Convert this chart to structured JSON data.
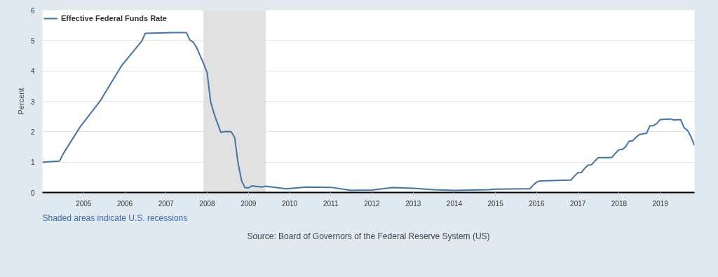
{
  "chart_data": {
    "type": "line",
    "ylabel": "Percent",
    "x": [
      "2004-01",
      "2004-06",
      "2004-07",
      "2004-12",
      "2005-06",
      "2005-12",
      "2006-06",
      "2006-07",
      "2007-03",
      "2007-07",
      "2007-08",
      "2007-09",
      "2007-10",
      "2007-11",
      "2007-12",
      "2008-01",
      "2008-02",
      "2008-03",
      "2008-04",
      "2008-05",
      "2008-06",
      "2008-07",
      "2008-08",
      "2008-09",
      "2008-10",
      "2008-11",
      "2008-12",
      "2009-01",
      "2009-02",
      "2009-05",
      "2009-06",
      "2009-12",
      "2010-06",
      "2011-01",
      "2011-07",
      "2012-01",
      "2012-07",
      "2013-01",
      "2013-07",
      "2014-01",
      "2014-11",
      "2015-01",
      "2015-10",
      "2015-11",
      "2015-12",
      "2016-01",
      "2016-02",
      "2016-11",
      "2016-12",
      "2017-01",
      "2017-02",
      "2017-03",
      "2017-04",
      "2017-05",
      "2017-06",
      "2017-07",
      "2017-10",
      "2017-11",
      "2017-12",
      "2018-01",
      "2018-02",
      "2018-03",
      "2018-04",
      "2018-05",
      "2018-06",
      "2018-07",
      "2018-09",
      "2018-10",
      "2018-11",
      "2018-12",
      "2019-01",
      "2019-04",
      "2019-05",
      "2019-07",
      "2019-08",
      "2019-09",
      "2019-10",
      "2019-11"
    ],
    "series": [
      {
        "name": "Effective Federal Funds Rate",
        "color": "#4572a7",
        "values": [
          1.0,
          1.03,
          1.26,
          2.16,
          3.04,
          4.16,
          4.99,
          5.24,
          5.26,
          5.26,
          5.02,
          4.94,
          4.76,
          4.49,
          4.24,
          3.94,
          2.98,
          2.61,
          2.28,
          1.98,
          2.0,
          2.01,
          2.0,
          1.81,
          0.97,
          0.39,
          0.16,
          0.15,
          0.22,
          0.18,
          0.21,
          0.12,
          0.18,
          0.17,
          0.07,
          0.08,
          0.16,
          0.14,
          0.09,
          0.07,
          0.09,
          0.11,
          0.12,
          0.12,
          0.24,
          0.34,
          0.38,
          0.41,
          0.54,
          0.65,
          0.66,
          0.79,
          0.9,
          0.91,
          1.04,
          1.15,
          1.15,
          1.16,
          1.3,
          1.41,
          1.42,
          1.51,
          1.69,
          1.7,
          1.82,
          1.91,
          1.95,
          2.19,
          2.2,
          2.27,
          2.4,
          2.42,
          2.39,
          2.4,
          2.13,
          2.04,
          1.83,
          1.55
        ]
      }
    ],
    "xlim": [
      "2004-01",
      "2019-11"
    ],
    "xticks": [
      "2005",
      "2006",
      "2007",
      "2008",
      "2009",
      "2010",
      "2011",
      "2012",
      "2013",
      "2014",
      "2015",
      "2016",
      "2017",
      "2018",
      "2019"
    ],
    "ylim": [
      0,
      6
    ],
    "yticks": [
      0,
      1,
      2,
      3,
      4,
      5,
      6
    ],
    "bands": [
      {
        "axis": "x",
        "from": "2007-12",
        "to": "2009-06",
        "color": "#e1e1e1"
      }
    ],
    "grid": "y",
    "legend": "top left",
    "annotations": [
      "Shaded areas indicate U.S. recessions",
      "Source: Board of Governors of the Federal Reserve System (US)"
    ]
  }
}
